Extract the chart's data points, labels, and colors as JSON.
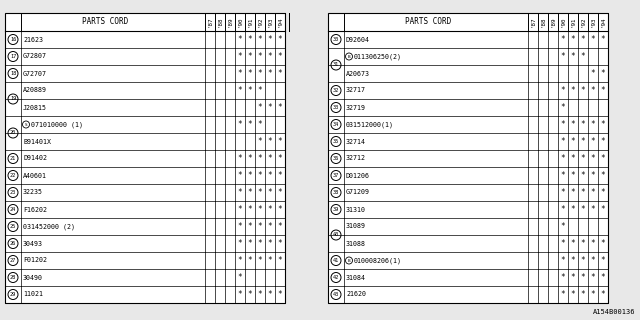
{
  "bg_color": "#e8e8e8",
  "header_cols": [
    "PARTS CORD",
    "'87",
    "'88",
    "'89",
    "'90",
    "'91",
    "'92",
    "'93",
    "'94"
  ],
  "left_rows": [
    {
      "num": "16",
      "part": "21623",
      "marks": [
        0,
        0,
        0,
        1,
        1,
        1,
        1,
        1
      ],
      "span": 1
    },
    {
      "num": "17",
      "part": "G72807",
      "marks": [
        0,
        0,
        0,
        1,
        1,
        1,
        1,
        1
      ],
      "span": 1
    },
    {
      "num": "18",
      "part": "G72707",
      "marks": [
        0,
        0,
        0,
        1,
        1,
        1,
        1,
        1
      ],
      "span": 1
    },
    {
      "num": "19",
      "part": "A20889",
      "marks": [
        0,
        0,
        0,
        1,
        1,
        1,
        0,
        0
      ],
      "span": 2,
      "sub": true
    },
    {
      "num": "",
      "part": "J20815",
      "marks": [
        0,
        0,
        0,
        0,
        0,
        1,
        1,
        1
      ],
      "span": 0
    },
    {
      "num": "20",
      "part": "S071010000 (1)",
      "marks": [
        0,
        0,
        0,
        1,
        1,
        1,
        0,
        0
      ],
      "span": 2,
      "sub": true,
      "special_s": true
    },
    {
      "num": "",
      "part": "B91401X",
      "marks": [
        0,
        0,
        0,
        0,
        0,
        1,
        1,
        1
      ],
      "span": 0
    },
    {
      "num": "21",
      "part": "D91402",
      "marks": [
        0,
        0,
        0,
        1,
        1,
        1,
        1,
        1
      ],
      "span": 1
    },
    {
      "num": "22",
      "part": "A40601",
      "marks": [
        0,
        0,
        0,
        1,
        1,
        1,
        1,
        1
      ],
      "span": 1
    },
    {
      "num": "23",
      "part": "32235",
      "marks": [
        0,
        0,
        0,
        1,
        1,
        1,
        1,
        1
      ],
      "span": 1
    },
    {
      "num": "24",
      "part": "F16202",
      "marks": [
        0,
        0,
        0,
        1,
        1,
        1,
        1,
        1
      ],
      "span": 1
    },
    {
      "num": "25",
      "part": "031452000 (2)",
      "marks": [
        0,
        0,
        0,
        1,
        1,
        1,
        1,
        1
      ],
      "span": 1
    },
    {
      "num": "26",
      "part": "30493",
      "marks": [
        0,
        0,
        0,
        1,
        1,
        1,
        1,
        1
      ],
      "span": 1
    },
    {
      "num": "27",
      "part": "F01202",
      "marks": [
        0,
        0,
        0,
        1,
        1,
        1,
        1,
        1
      ],
      "span": 1
    },
    {
      "num": "28",
      "part": "30490",
      "marks": [
        0,
        0,
        0,
        1,
        0,
        0,
        0,
        0
      ],
      "span": 1
    },
    {
      "num": "29",
      "part": "11021",
      "marks": [
        0,
        0,
        0,
        1,
        1,
        1,
        1,
        1
      ],
      "span": 1
    }
  ],
  "right_rows": [
    {
      "num": "30",
      "part": "D92604",
      "marks": [
        0,
        0,
        0,
        1,
        1,
        1,
        1,
        1
      ],
      "span": 1
    },
    {
      "num": "31",
      "part": "B011306250(2)",
      "marks": [
        0,
        0,
        0,
        1,
        1,
        1,
        0,
        0
      ],
      "span": 2,
      "sub": true,
      "special_b": true
    },
    {
      "num": "",
      "part": "A20673",
      "marks": [
        0,
        0,
        0,
        0,
        0,
        0,
        1,
        1
      ],
      "span": 0
    },
    {
      "num": "32",
      "part": "32717",
      "marks": [
        0,
        0,
        0,
        1,
        1,
        1,
        1,
        1
      ],
      "span": 1
    },
    {
      "num": "33",
      "part": "32719",
      "marks": [
        0,
        0,
        0,
        1,
        0,
        0,
        0,
        0
      ],
      "span": 1
    },
    {
      "num": "34",
      "part": "031512000(1)",
      "marks": [
        0,
        0,
        0,
        1,
        1,
        1,
        1,
        1
      ],
      "span": 1
    },
    {
      "num": "35",
      "part": "32714",
      "marks": [
        0,
        0,
        0,
        1,
        1,
        1,
        1,
        1
      ],
      "span": 1
    },
    {
      "num": "36",
      "part": "32712",
      "marks": [
        0,
        0,
        0,
        1,
        1,
        1,
        1,
        1
      ],
      "span": 1
    },
    {
      "num": "37",
      "part": "D01206",
      "marks": [
        0,
        0,
        0,
        1,
        1,
        1,
        1,
        1
      ],
      "span": 1
    },
    {
      "num": "38",
      "part": "G71209",
      "marks": [
        0,
        0,
        0,
        1,
        1,
        1,
        1,
        1
      ],
      "span": 1
    },
    {
      "num": "39",
      "part": "31310",
      "marks": [
        0,
        0,
        0,
        1,
        1,
        1,
        1,
        1
      ],
      "span": 1
    },
    {
      "num": "40",
      "part": "31089",
      "marks": [
        0,
        0,
        0,
        1,
        0,
        0,
        0,
        0
      ],
      "span": 2,
      "sub": true
    },
    {
      "num": "",
      "part": "31088",
      "marks": [
        0,
        0,
        0,
        1,
        1,
        1,
        1,
        1
      ],
      "span": 0
    },
    {
      "num": "41",
      "part": "B010008206(1)",
      "marks": [
        0,
        0,
        0,
        1,
        1,
        1,
        1,
        1
      ],
      "span": 1,
      "special_b": true
    },
    {
      "num": "42",
      "part": "31084",
      "marks": [
        0,
        0,
        0,
        1,
        1,
        1,
        1,
        1
      ],
      "span": 1
    },
    {
      "num": "43",
      "part": "21620",
      "marks": [
        0,
        0,
        0,
        1,
        1,
        1,
        1,
        1
      ],
      "span": 1
    }
  ],
  "watermark": "A154B00136",
  "star": "*"
}
